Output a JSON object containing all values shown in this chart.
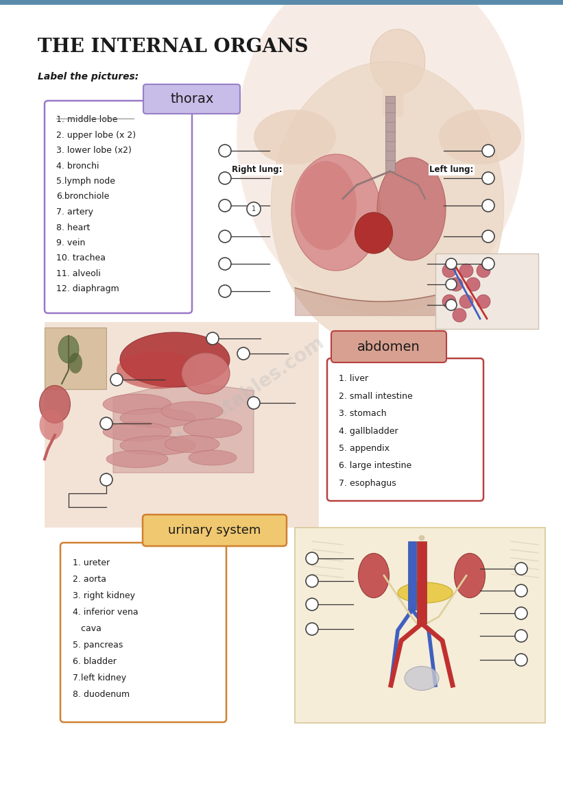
{
  "title": "THE INTERNAL ORGANS",
  "subtitle": "Label the pictures:",
  "bg_color": "#ffffff",
  "top_bar_color": "#5a8aaa",
  "thorax_label": "thorax",
  "thorax_label_bg": "#c8bce8",
  "thorax_label_border": "#9880c8",
  "thorax_list_border": "#9878c8",
  "thorax_list": [
    "1. middle lobe",
    "2. upper lobe (x 2)",
    "3. lower lobe (x2)",
    "4. bronchi",
    "5.lymph node",
    "6.bronchiole",
    "7. artery",
    "8. heart",
    "9. vein",
    "10. trachea",
    "11. alveoli",
    "12. diaphragm"
  ],
  "right_lung_label": "Right lung:",
  "left_lung_label": "Left lung:",
  "abdomen_label": "abdomen",
  "abdomen_label_bg": "#d8a090",
  "abdomen_label_border": "#b84040",
  "abdomen_list_border": "#b84040",
  "abdomen_list": [
    "1. liver",
    "2. small intestine",
    "3. stomach",
    "4. gallbladder",
    "5. appendix",
    "6. large intestine",
    "7. esophagus"
  ],
  "urinary_label": "urinary system",
  "urinary_label_bg": "#f0c870",
  "urinary_label_border": "#d08030",
  "urinary_list_border": "#d08030",
  "urinary_list": [
    "1. ureter",
    "2. aorta",
    "3. right kidney",
    "4. inferior vena",
    "   cava",
    "5. pancreas",
    "6. bladder",
    "7.left kidney",
    "8. duodenum"
  ],
  "skin_color": "#e8c0a8",
  "skin_light": "#f0d0b8",
  "organ_red": "#c04848",
  "organ_pink": "#d87878",
  "organ_dark_red": "#903030",
  "intestine_pink": "#d89090",
  "circle_color": "#ffffff",
  "circle_edge": "#444444",
  "line_color": "#333333"
}
